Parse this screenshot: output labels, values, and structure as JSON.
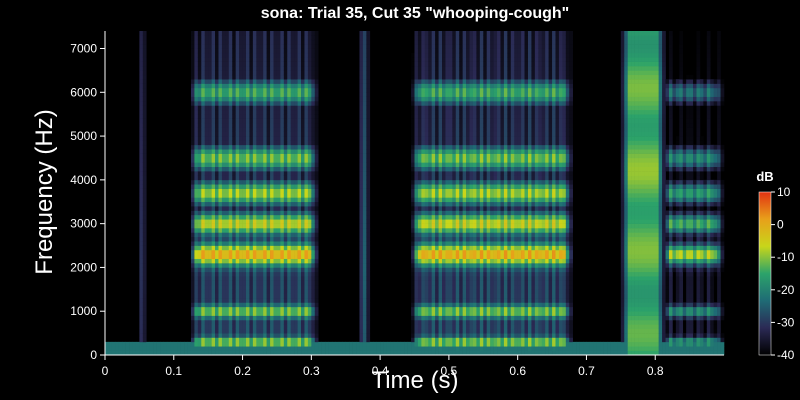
{
  "chart_data": {
    "type": "heatmap",
    "title": "sona: Trial 35, Cut 35 \"whooping-cough\"",
    "xlabel": "Time (s)",
    "ylabel": "Frequency (Hz)",
    "xlim": [
      0,
      0.9
    ],
    "ylim": [
      0,
      7400
    ],
    "x_ticks": [
      0,
      0.1,
      0.2,
      0.3,
      0.4,
      0.5,
      0.6,
      0.7,
      0.8
    ],
    "x_tick_labels": [
      "0",
      "0.1",
      "0.2",
      "0.3",
      "0.4",
      "0.5",
      "0.6",
      "0.7",
      "0.8"
    ],
    "y_ticks": [
      0,
      1000,
      2000,
      3000,
      4000,
      5000,
      6000,
      7000
    ],
    "y_tick_labels": [
      "0",
      "1000",
      "2000",
      "3000",
      "4000",
      "5000",
      "6000",
      "7000"
    ],
    "colorbar": {
      "title": "dB",
      "range": [
        -40,
        10
      ],
      "ticks": [
        10,
        0,
        -10,
        -20,
        -30,
        -40
      ],
      "tick_labels": [
        "10",
        "0",
        "-10",
        "-20",
        "-30",
        "-40"
      ],
      "colors": [
        "#000000",
        "#2b2a55",
        "#1f6b75",
        "#2ca36a",
        "#c8d61a",
        "#e8a01a",
        "#e23312"
      ]
    },
    "background_level_db": -40,
    "segments": [
      {
        "start": 0.048,
        "end": 0.06,
        "peak_db": -15,
        "kind": "burst"
      },
      {
        "start": 0.123,
        "end": 0.31,
        "peak_db": 8,
        "kind": "voiced",
        "f0_hz": 120
      },
      {
        "start": 0.368,
        "end": 0.385,
        "peak_db": -15,
        "kind": "burst"
      },
      {
        "start": 0.445,
        "end": 0.68,
        "peak_db": 8,
        "kind": "voiced",
        "f0_hz": 115
      },
      {
        "start": 0.75,
        "end": 0.815,
        "peak_db": -12,
        "kind": "fricative"
      },
      {
        "start": 0.81,
        "end": 0.9,
        "peak_db": 0,
        "kind": "voiced",
        "f0_hz": 130
      }
    ],
    "formant_bands_hz": [
      300,
      1000,
      2300,
      3000,
      3700,
      4500,
      6000
    ],
    "low_floor_band_hz": [
      0,
      300
    ],
    "low_floor_db": -22
  }
}
